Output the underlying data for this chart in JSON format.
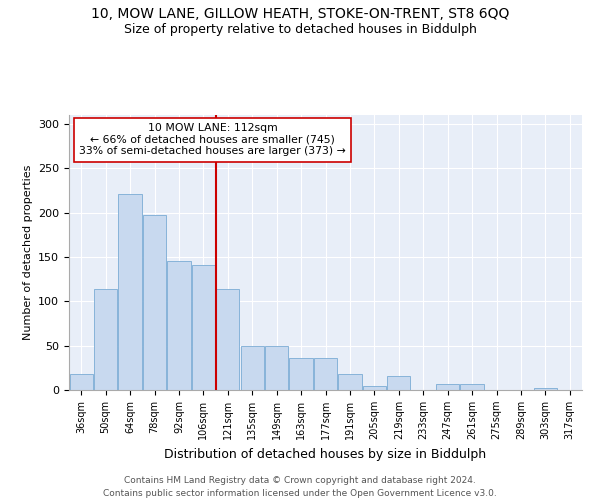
{
  "title1": "10, MOW LANE, GILLOW HEATH, STOKE-ON-TRENT, ST8 6QQ",
  "title2": "Size of property relative to detached houses in Biddulph",
  "xlabel": "Distribution of detached houses by size in Biddulph",
  "ylabel": "Number of detached properties",
  "categories": [
    "36sqm",
    "50sqm",
    "64sqm",
    "78sqm",
    "92sqm",
    "106sqm",
    "121sqm",
    "135sqm",
    "149sqm",
    "163sqm",
    "177sqm",
    "191sqm",
    "205sqm",
    "219sqm",
    "233sqm",
    "247sqm",
    "261sqm",
    "275sqm",
    "289sqm",
    "303sqm",
    "317sqm"
  ],
  "values": [
    18,
    114,
    221,
    197,
    145,
    141,
    114,
    50,
    50,
    36,
    36,
    18,
    5,
    16,
    0,
    7,
    7,
    0,
    0,
    2,
    0
  ],
  "bar_color": "#c8d9ef",
  "bar_edge_color": "#7aabd4",
  "vline_x": 6.0,
  "vline_color": "#cc0000",
  "annotation_text": "10 MOW LANE: 112sqm\n← 66% of detached houses are smaller (745)\n33% of semi-detached houses are larger (373) →",
  "annotation_box_facecolor": "#ffffff",
  "annotation_box_edgecolor": "#cc0000",
  "ylim": [
    0,
    310
  ],
  "yticks": [
    0,
    50,
    100,
    150,
    200,
    250,
    300
  ],
  "footer1": "Contains HM Land Registry data © Crown copyright and database right 2024.",
  "footer2": "Contains public sector information licensed under the Open Government Licence v3.0.",
  "bg_color": "#ffffff",
  "plot_bg_color": "#e8eef8",
  "grid_color": "#ffffff"
}
